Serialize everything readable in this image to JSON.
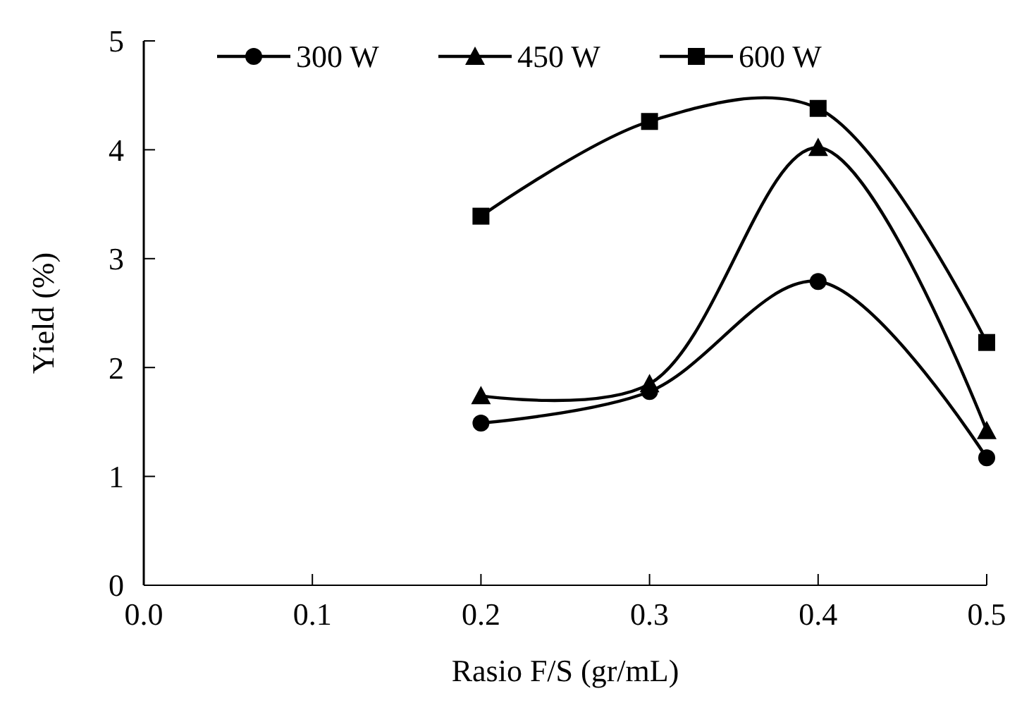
{
  "chart_data": {
    "type": "line",
    "xlabel": "Rasio F/S (gr/mL)",
    "ylabel": "Yield (%)",
    "x": [
      0.2,
      0.3,
      0.4,
      0.5
    ],
    "xlim": [
      0,
      0.5
    ],
    "xticks": [
      {
        "value": 0,
        "label": "0.0"
      },
      0.1,
      0.2,
      0.3,
      0.4,
      0.5
    ],
    "ylim": [
      0,
      5
    ],
    "yticks": [
      0,
      1,
      2,
      3,
      4,
      5
    ],
    "grid": false,
    "legend": "top",
    "line_style": "solid",
    "series": [
      {
        "name": "300 W",
        "color": "#000000",
        "marker": "circle",
        "values": [
          1.49,
          1.78,
          2.79,
          1.17
        ]
      },
      {
        "name": "450 W",
        "color": "#000000",
        "marker": "triangle",
        "values": [
          1.74,
          1.85,
          4.02,
          1.42
        ]
      },
      {
        "name": "600 W",
        "color": "#000000",
        "marker": "square",
        "values": [
          3.39,
          4.26,
          4.38,
          2.23
        ]
      }
    ]
  }
}
